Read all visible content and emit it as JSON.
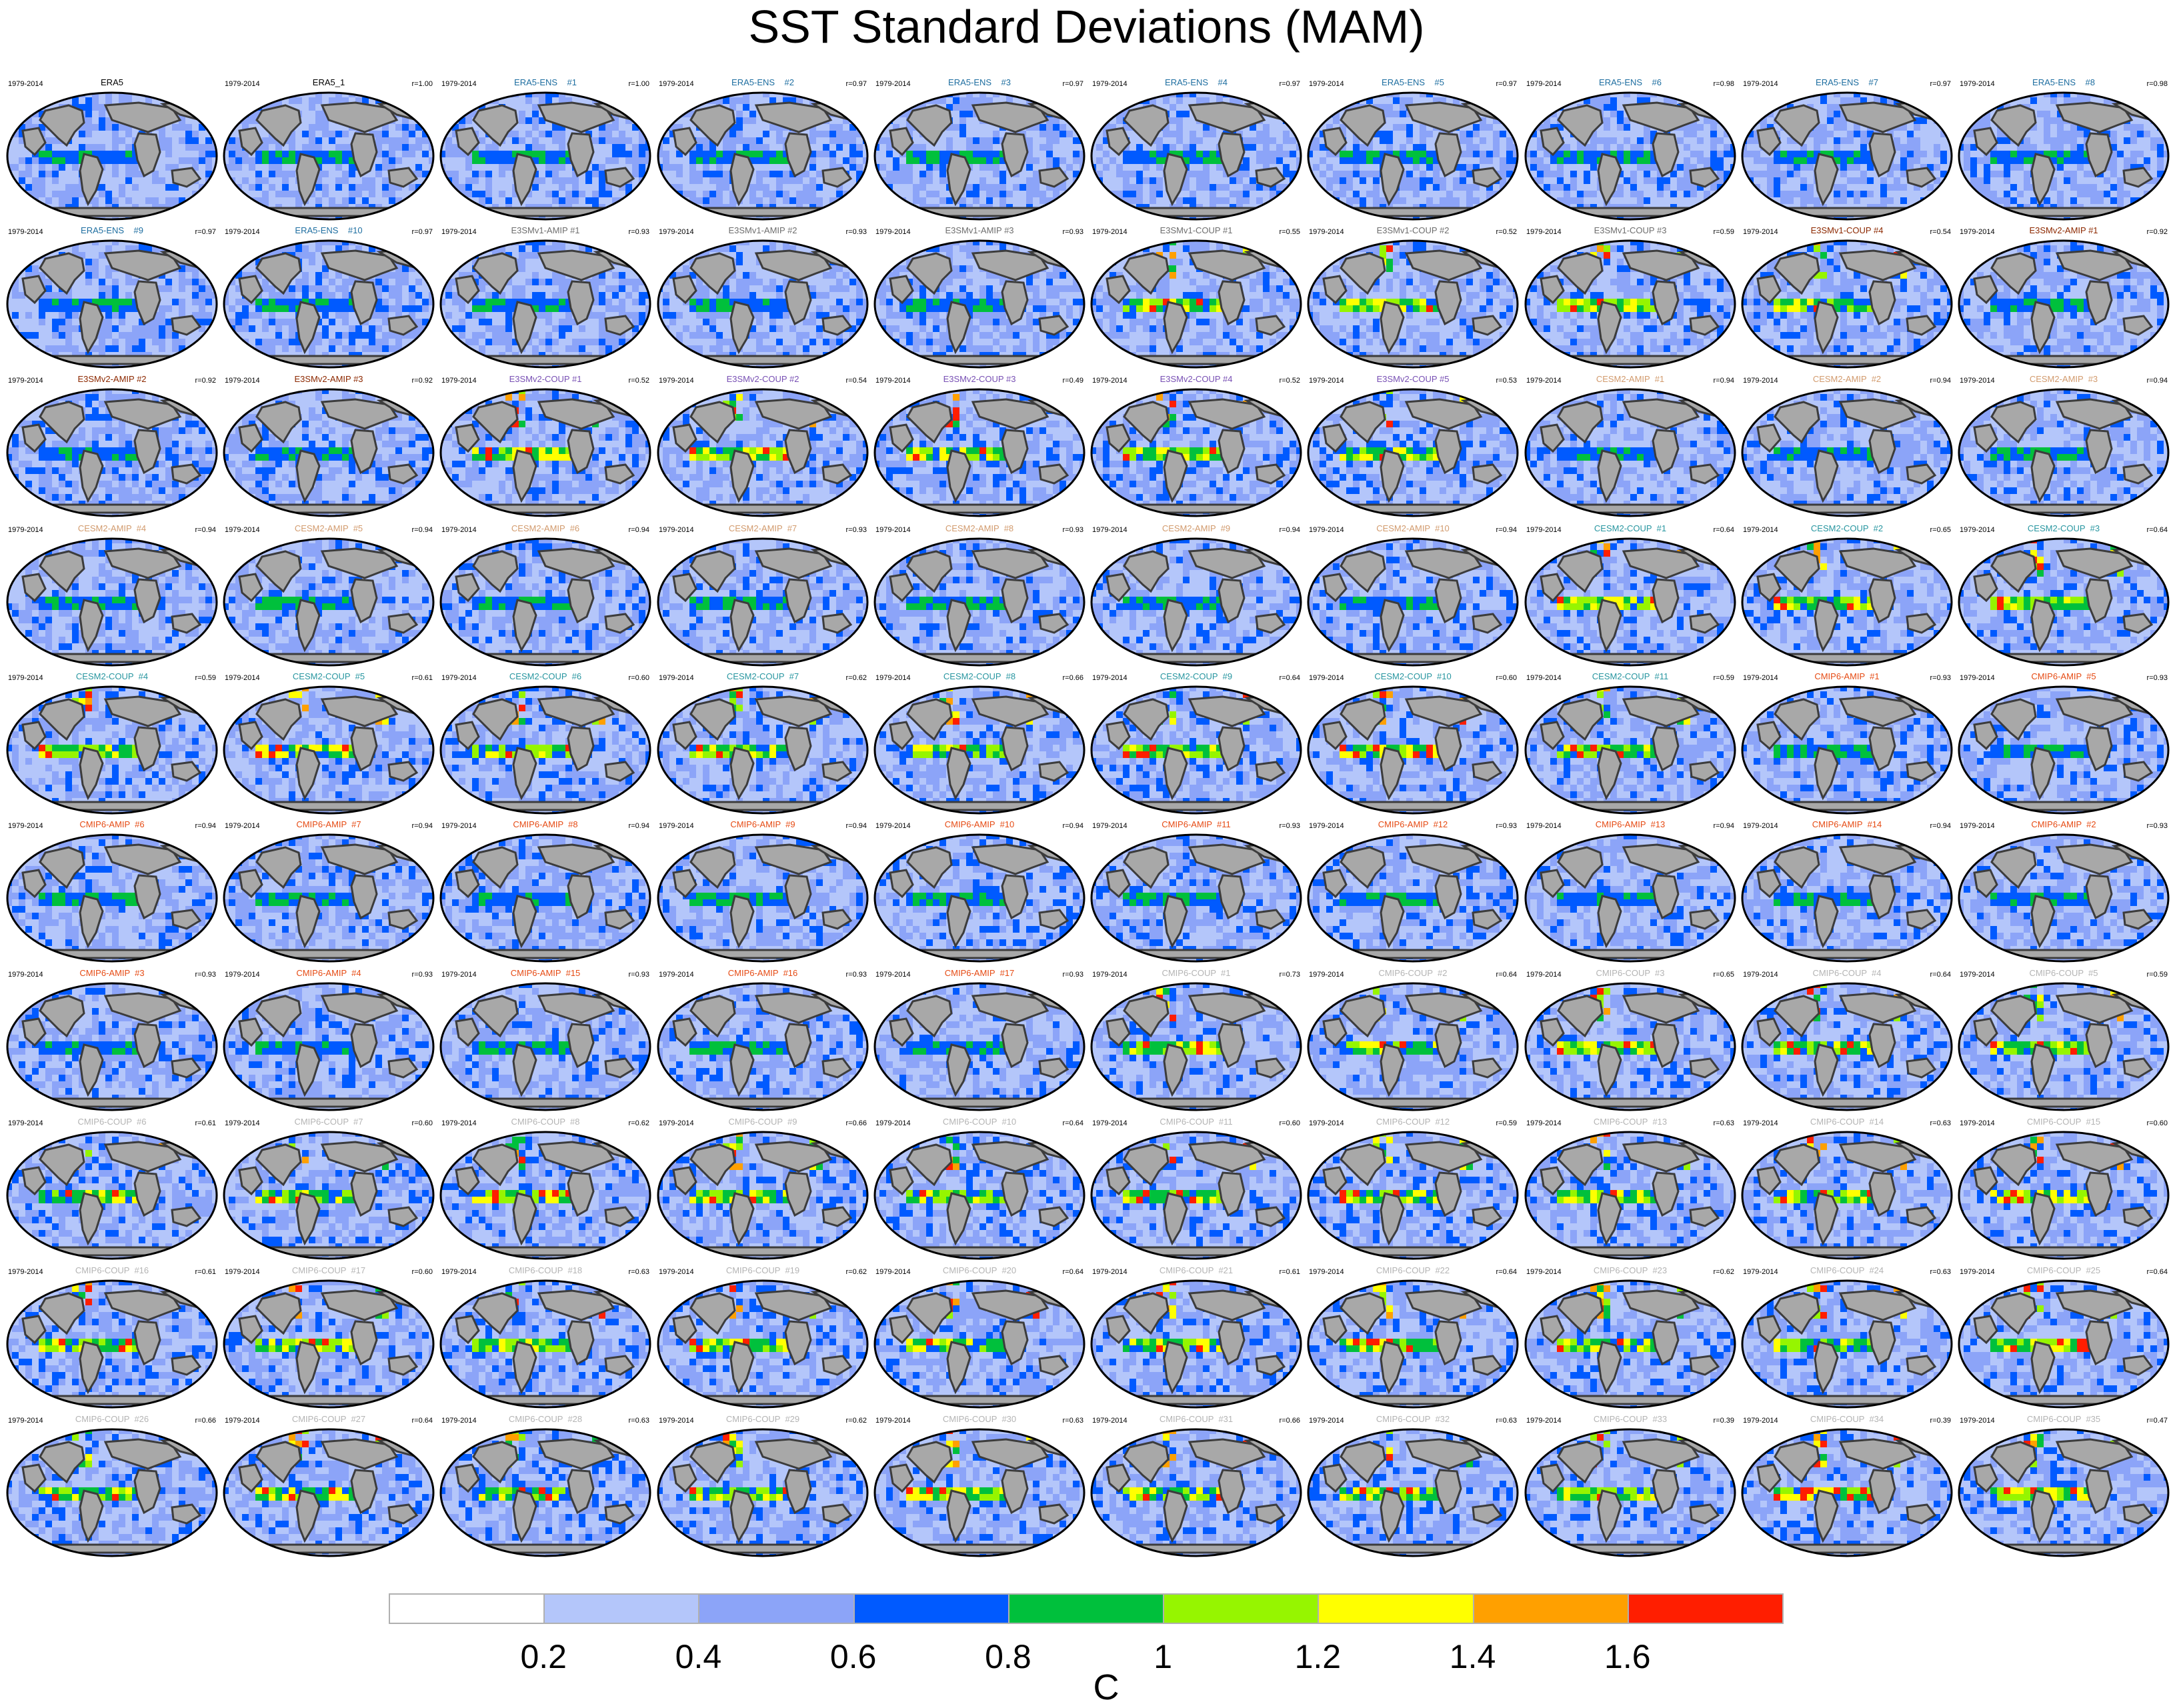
{
  "title": "SST Standard Deviations (MAM)",
  "chart_data": {
    "type": "heatmap",
    "title": "SST Standard Deviations (MAM)",
    "units": "C",
    "period": "1979-2014",
    "colorbar": {
      "ticks": [
        "0.2",
        "0.4",
        "0.6",
        "0.8",
        "1",
        "1.2",
        "1.4",
        "1.6"
      ],
      "colors": [
        "#ffffff",
        "#b4c6fa",
        "#8ca4f8",
        "#005aff",
        "#00c03c",
        "#96f500",
        "#ffff00",
        "#ffa000",
        "#ff1e00"
      ]
    },
    "panels": [
      {
        "name": "ERA5",
        "color": "#000000",
        "r": ""
      },
      {
        "name": "ERA5_1",
        "color": "#000000",
        "r": "r=1.00"
      },
      {
        "name": "ERA5-ENS    #1",
        "color": "#1e6ea0",
        "r": "r=1.00"
      },
      {
        "name": "ERA5-ENS    #2",
        "color": "#1e6ea0",
        "r": "r=0.97"
      },
      {
        "name": "ERA5-ENS    #3",
        "color": "#1e6ea0",
        "r": "r=0.97"
      },
      {
        "name": "ERA5-ENS    #4",
        "color": "#1e6ea0",
        "r": "r=0.97"
      },
      {
        "name": "ERA5-ENS    #5",
        "color": "#1e6ea0",
        "r": "r=0.97"
      },
      {
        "name": "ERA5-ENS    #6",
        "color": "#1e6ea0",
        "r": "r=0.98"
      },
      {
        "name": "ERA5-ENS    #7",
        "color": "#1e6ea0",
        "r": "r=0.97"
      },
      {
        "name": "ERA5-ENS    #8",
        "color": "#1e6ea0",
        "r": "r=0.98"
      },
      {
        "name": "ERA5-ENS    #9",
        "color": "#1e6ea0",
        "r": "r=0.97"
      },
      {
        "name": "ERA5-ENS    #10",
        "color": "#1e6ea0",
        "r": "r=0.97"
      },
      {
        "name": "E3SMv1-AMIP #1",
        "color": "#6e6e6e",
        "r": "r=0.93"
      },
      {
        "name": "E3SMv1-AMIP #2",
        "color": "#6e6e6e",
        "r": "r=0.93"
      },
      {
        "name": "E3SMv1-AMIP #3",
        "color": "#6e6e6e",
        "r": "r=0.93"
      },
      {
        "name": "E3SMv1-COUP #1",
        "color": "#6e6e6e",
        "r": "r=0.55"
      },
      {
        "name": "E3SMv1-COUP #2",
        "color": "#6e6e6e",
        "r": "r=0.52"
      },
      {
        "name": "E3SMv1-COUP #3",
        "color": "#6e6e6e",
        "r": "r=0.59"
      },
      {
        "name": "E3SMv1-COUP #4",
        "color": "#8c2800",
        "r": "r=0.54"
      },
      {
        "name": "E3SMv2-AMIP #1",
        "color": "#8c2800",
        "r": "r=0.92"
      },
      {
        "name": "E3SMv2-AMIP #2",
        "color": "#8c2800",
        "r": "r=0.92"
      },
      {
        "name": "E3SMv2-AMIP #3",
        "color": "#8c2800",
        "r": "r=0.92"
      },
      {
        "name": "E3SMv2-COUP #1",
        "color": "#7850b4",
        "r": "r=0.52"
      },
      {
        "name": "E3SMv2-COUP #2",
        "color": "#7850b4",
        "r": "r=0.54"
      },
      {
        "name": "E3SMv2-COUP #3",
        "color": "#7850b4",
        "r": "r=0.49"
      },
      {
        "name": "E3SMv2-COUP #4",
        "color": "#7850b4",
        "r": "r=0.52"
      },
      {
        "name": "E3SMv2-COUP #5",
        "color": "#7850b4",
        "r": "r=0.53"
      },
      {
        "name": "CESM2-AMIP  #1",
        "color": "#d29b6e",
        "r": "r=0.94"
      },
      {
        "name": "CESM2-AMIP  #2",
        "color": "#d29b6e",
        "r": "r=0.94"
      },
      {
        "name": "CESM2-AMIP  #3",
        "color": "#d29b6e",
        "r": "r=0.94"
      },
      {
        "name": "CESM2-AMIP  #4",
        "color": "#d29b6e",
        "r": "r=0.94"
      },
      {
        "name": "CESM2-AMIP  #5",
        "color": "#d29b6e",
        "r": "r=0.94"
      },
      {
        "name": "CESM2-AMIP  #6",
        "color": "#d29b6e",
        "r": "r=0.94"
      },
      {
        "name": "CESM2-AMIP  #7",
        "color": "#d29b6e",
        "r": "r=0.93"
      },
      {
        "name": "CESM2-AMIP  #8",
        "color": "#d29b6e",
        "r": "r=0.93"
      },
      {
        "name": "CESM2-AMIP  #9",
        "color": "#d29b6e",
        "r": "r=0.94"
      },
      {
        "name": "CESM2-AMIP  #10",
        "color": "#d29b6e",
        "r": "r=0.94"
      },
      {
        "name": "CESM2-COUP  #1",
        "color": "#2896a0",
        "r": "r=0.64"
      },
      {
        "name": "CESM2-COUP  #2",
        "color": "#2896a0",
        "r": "r=0.65"
      },
      {
        "name": "CESM2-COUP  #3",
        "color": "#2896a0",
        "r": "r=0.64"
      },
      {
        "name": "CESM2-COUP  #4",
        "color": "#2896a0",
        "r": "r=0.59"
      },
      {
        "name": "CESM2-COUP  #5",
        "color": "#2896a0",
        "r": "r=0.61"
      },
      {
        "name": "CESM2-COUP  #6",
        "color": "#2896a0",
        "r": "r=0.60"
      },
      {
        "name": "CESM2-COUP  #7",
        "color": "#2896a0",
        "r": "r=0.62"
      },
      {
        "name": "CESM2-COUP  #8",
        "color": "#2896a0",
        "r": "r=0.66"
      },
      {
        "name": "CESM2-COUP  #9",
        "color": "#2896a0",
        "r": "r=0.64"
      },
      {
        "name": "CESM2-COUP  #10",
        "color": "#2896a0",
        "r": "r=0.60"
      },
      {
        "name": "CESM2-COUP  #11",
        "color": "#2896a0",
        "r": "r=0.59"
      },
      {
        "name": "CMIP6-AMIP  #1",
        "color": "#e64b14",
        "r": "r=0.93"
      },
      {
        "name": "CMIP6-AMIP  #5",
        "color": "#e64b14",
        "r": "r=0.93"
      },
      {
        "name": "CMIP6-AMIP  #6",
        "color": "#e64b14",
        "r": "r=0.94"
      },
      {
        "name": "CMIP6-AMIP  #7",
        "color": "#e64b14",
        "r": "r=0.94"
      },
      {
        "name": "CMIP6-AMIP  #8",
        "color": "#e64b14",
        "r": "r=0.94"
      },
      {
        "name": "CMIP6-AMIP  #9",
        "color": "#e64b14",
        "r": "r=0.94"
      },
      {
        "name": "CMIP6-AMIP  #10",
        "color": "#e64b14",
        "r": "r=0.94"
      },
      {
        "name": "CMIP6-AMIP  #11",
        "color": "#e64b14",
        "r": "r=0.93"
      },
      {
        "name": "CMIP6-AMIP  #12",
        "color": "#e64b14",
        "r": "r=0.93"
      },
      {
        "name": "CMIP6-AMIP  #13",
        "color": "#e64b14",
        "r": "r=0.94"
      },
      {
        "name": "CMIP6-AMIP  #14",
        "color": "#e64b14",
        "r": "r=0.94"
      },
      {
        "name": "CMIP6-AMIP  #2",
        "color": "#e64b14",
        "r": "r=0.93"
      },
      {
        "name": "CMIP6-AMIP  #3",
        "color": "#e64b14",
        "r": "r=0.93"
      },
      {
        "name": "CMIP6-AMIP  #4",
        "color": "#e64b14",
        "r": "r=0.93"
      },
      {
        "name": "CMIP6-AMIP  #15",
        "color": "#e64b14",
        "r": "r=0.93"
      },
      {
        "name": "CMIP6-AMIP  #16",
        "color": "#e64b14",
        "r": "r=0.93"
      },
      {
        "name": "CMIP6-AMIP  #17",
        "color": "#e64b14",
        "r": "r=0.93"
      },
      {
        "name": "CMIP6-COUP  #1",
        "color": "#b4b4b4",
        "r": "r=0.73"
      },
      {
        "name": "CMIP6-COUP  #2",
        "color": "#b4b4b4",
        "r": "r=0.64"
      },
      {
        "name": "CMIP6-COUP  #3",
        "color": "#b4b4b4",
        "r": "r=0.65"
      },
      {
        "name": "CMIP6-COUP  #4",
        "color": "#b4b4b4",
        "r": "r=0.64"
      },
      {
        "name": "CMIP6-COUP  #5",
        "color": "#b4b4b4",
        "r": "r=0.59"
      },
      {
        "name": "CMIP6-COUP  #6",
        "color": "#b4b4b4",
        "r": "r=0.61"
      },
      {
        "name": "CMIP6-COUP  #7",
        "color": "#b4b4b4",
        "r": "r=0.60"
      },
      {
        "name": "CMIP6-COUP  #8",
        "color": "#b4b4b4",
        "r": "r=0.62"
      },
      {
        "name": "CMIP6-COUP  #9",
        "color": "#b4b4b4",
        "r": "r=0.66"
      },
      {
        "name": "CMIP6-COUP  #10",
        "color": "#b4b4b4",
        "r": "r=0.64"
      },
      {
        "name": "CMIP6-COUP  #11",
        "color": "#b4b4b4",
        "r": "r=0.60"
      },
      {
        "name": "CMIP6-COUP  #12",
        "color": "#b4b4b4",
        "r": "r=0.59"
      },
      {
        "name": "CMIP6-COUP  #13",
        "color": "#b4b4b4",
        "r": "r=0.63"
      },
      {
        "name": "CMIP6-COUP  #14",
        "color": "#b4b4b4",
        "r": "r=0.63"
      },
      {
        "name": "CMIP6-COUP  #15",
        "color": "#b4b4b4",
        "r": "r=0.60"
      },
      {
        "name": "CMIP6-COUP  #16",
        "color": "#b4b4b4",
        "r": "r=0.61"
      },
      {
        "name": "CMIP6-COUP  #17",
        "color": "#b4b4b4",
        "r": "r=0.60"
      },
      {
        "name": "CMIP6-COUP  #18",
        "color": "#b4b4b4",
        "r": "r=0.63"
      },
      {
        "name": "CMIP6-COUP  #19",
        "color": "#b4b4b4",
        "r": "r=0.62"
      },
      {
        "name": "CMIP6-COUP  #20",
        "color": "#b4b4b4",
        "r": "r=0.64"
      },
      {
        "name": "CMIP6-COUP  #21",
        "color": "#b4b4b4",
        "r": "r=0.61"
      },
      {
        "name": "CMIP6-COUP  #22",
        "color": "#b4b4b4",
        "r": "r=0.64"
      },
      {
        "name": "CMIP6-COUP  #23",
        "color": "#b4b4b4",
        "r": "r=0.62"
      },
      {
        "name": "CMIP6-COUP  #24",
        "color": "#b4b4b4",
        "r": "r=0.63"
      },
      {
        "name": "CMIP6-COUP  #25",
        "color": "#b4b4b4",
        "r": "r=0.64"
      },
      {
        "name": "CMIP6-COUP  #26",
        "color": "#b4b4b4",
        "r": "r=0.66"
      },
      {
        "name": "CMIP6-COUP  #27",
        "color": "#b4b4b4",
        "r": "r=0.64"
      },
      {
        "name": "CMIP6-COUP  #28",
        "color": "#b4b4b4",
        "r": "r=0.63"
      },
      {
        "name": "CMIP6-COUP  #29",
        "color": "#b4b4b4",
        "r": "r=0.62"
      },
      {
        "name": "CMIP6-COUP  #30",
        "color": "#b4b4b4",
        "r": "r=0.63"
      },
      {
        "name": "CMIP6-COUP  #31",
        "color": "#b4b4b4",
        "r": "r=0.66"
      },
      {
        "name": "CMIP6-COUP  #32",
        "color": "#b4b4b4",
        "r": "r=0.63"
      },
      {
        "name": "CMIP6-COUP  #33",
        "color": "#b4b4b4",
        "r": "r=0.39"
      },
      {
        "name": "CMIP6-COUP  #34",
        "color": "#b4b4b4",
        "r": "r=0.39"
      },
      {
        "name": "CMIP6-COUP  #35",
        "color": "#b4b4b4",
        "r": "r=0.47"
      }
    ]
  }
}
